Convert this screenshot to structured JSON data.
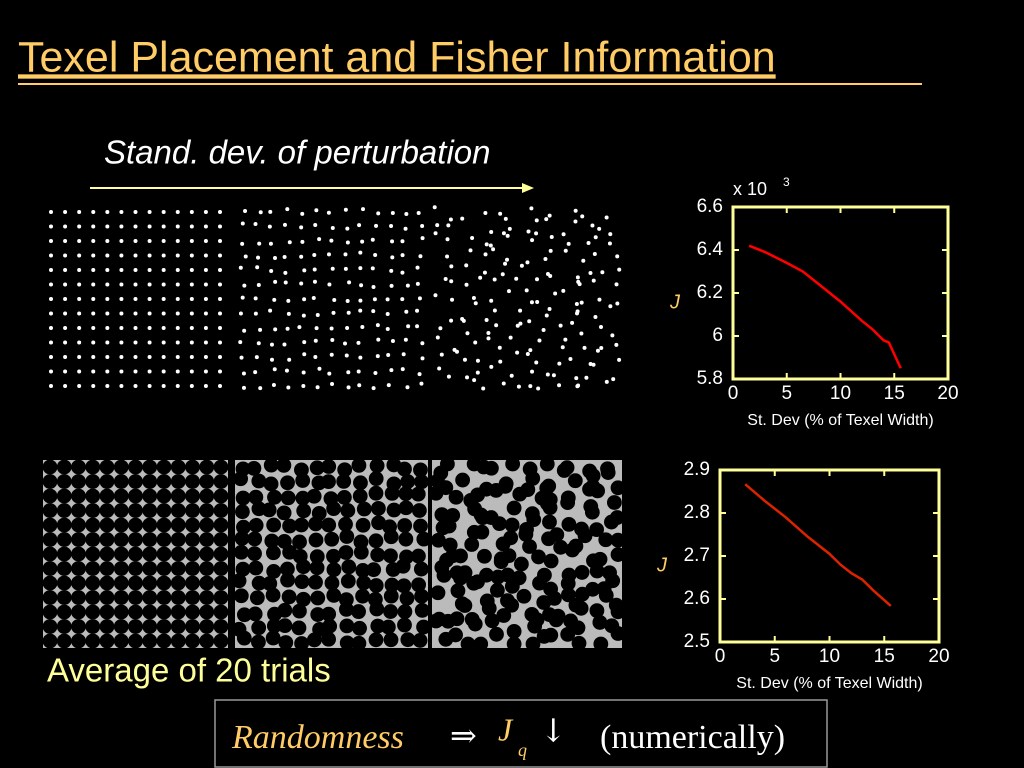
{
  "slide": {
    "title": "Texel Placement and Fisher Information",
    "arrow_caption": "Stand. dev. of perturbation",
    "caption": "Average of 20 trials"
  },
  "formula": {
    "lhs": "Randomness",
    "arrow": "⇒",
    "symbol": "J",
    "subscript": "q",
    "direction": "↓",
    "note": "(numerically)"
  },
  "chart_data": [
    {
      "type": "line",
      "multiplier": "x 10",
      "multiplier_exponent": "3",
      "xlabel": "St. Dev (% of Texel Width)",
      "ylabel": "J",
      "x": [
        1.5,
        3,
        5,
        6.5,
        8,
        10,
        12,
        13,
        14,
        14.5,
        15.6
      ],
      "series": [
        {
          "color": "#ff0000",
          "values": [
            6.42,
            6.39,
            6.34,
            6.3,
            6.24,
            6.16,
            6.07,
            6.03,
            5.98,
            5.97,
            5.85
          ]
        }
      ],
      "xlim": [
        0,
        20
      ],
      "ylim": [
        5.8,
        6.6
      ],
      "xticks": [
        0,
        5,
        10,
        15,
        20
      ],
      "yticks": [
        5.8,
        6,
        6.2,
        6.4,
        6.6
      ],
      "frame_color": "#ffff99"
    },
    {
      "type": "line",
      "xlabel": "St. Dev (% of Texel Width)",
      "ylabel": "J",
      "x": [
        2.3,
        4,
        6,
        8,
        10,
        11,
        12,
        13,
        14,
        15.6
      ],
      "series": [
        {
          "color": "#dd2200",
          "values": [
            2.867,
            2.83,
            2.79,
            2.745,
            2.705,
            2.68,
            2.66,
            2.645,
            2.62,
            2.584
          ]
        }
      ],
      "xlim": [
        0,
        20
      ],
      "ylim": [
        2.5,
        2.9
      ],
      "xticks": [
        0,
        5,
        10,
        15,
        20
      ],
      "yticks": [
        2.5,
        2.6,
        2.7,
        2.8,
        2.9
      ],
      "frame_color": "#ffff99"
    }
  ]
}
